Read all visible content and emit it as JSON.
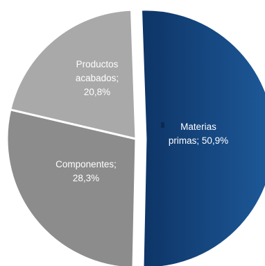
{
  "chart_data": {
    "type": "pie",
    "title": "",
    "legend": "none",
    "slices": [
      {
        "label_lines": [
          "Materias",
          "primas; 50,9%"
        ],
        "value": 50.9,
        "color": "#0d3466",
        "gradient_to": "#1e5a9a",
        "label_color": "#ffffff"
      },
      {
        "label_lines": [
          "Componentes;",
          "28,3%"
        ],
        "value": 28.3,
        "color": "#8c8c8c",
        "label_color": "#ffffff"
      },
      {
        "label_lines": [
          "Productos",
          "acabados;",
          "20,8%"
        ],
        "value": 20.8,
        "color": "#a9a9a9",
        "label_color": "#ffffff"
      }
    ]
  }
}
